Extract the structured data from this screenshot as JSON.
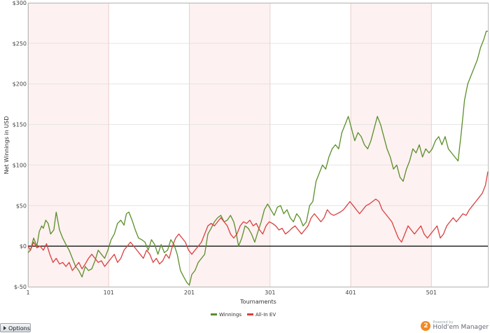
{
  "chart_data": {
    "type": "line",
    "title": "",
    "xlabel": "Tournaments",
    "ylabel": "Net Winnings in USD",
    "xlim": [
      1,
      571
    ],
    "ylim": [
      -50,
      300
    ],
    "x_ticks": [
      1,
      101,
      201,
      301,
      401,
      501
    ],
    "x_tick_labels": [
      "1",
      "101",
      "201",
      "301",
      "401",
      "501"
    ],
    "y_ticks": [
      -50,
      0,
      50,
      100,
      150,
      200,
      250,
      300
    ],
    "y_tick_labels": [
      "$-50",
      "$0",
      "$50",
      "$100",
      "$150",
      "$200",
      "$250",
      "$300"
    ],
    "shaded_bands": [
      [
        1,
        101
      ],
      [
        201,
        301
      ],
      [
        401,
        501
      ]
    ],
    "grid": true,
    "legend_position": "bottom-center",
    "series": [
      {
        "name": "Winnings",
        "color": "#5a8f29",
        "points": [
          [
            1,
            -8
          ],
          [
            4,
            -5
          ],
          [
            8,
            10
          ],
          [
            12,
            0
          ],
          [
            15,
            18
          ],
          [
            18,
            25
          ],
          [
            20,
            22
          ],
          [
            23,
            32
          ],
          [
            26,
            28
          ],
          [
            29,
            15
          ],
          [
            33,
            20
          ],
          [
            36,
            42
          ],
          [
            40,
            20
          ],
          [
            44,
            10
          ],
          [
            48,
            2
          ],
          [
            52,
            -5
          ],
          [
            56,
            -15
          ],
          [
            60,
            -25
          ],
          [
            64,
            -30
          ],
          [
            68,
            -38
          ],
          [
            72,
            -25
          ],
          [
            76,
            -30
          ],
          [
            80,
            -28
          ],
          [
            84,
            -18
          ],
          [
            88,
            -5
          ],
          [
            92,
            -10
          ],
          [
            96,
            -15
          ],
          [
            100,
            -5
          ],
          [
            104,
            8
          ],
          [
            108,
            15
          ],
          [
            112,
            28
          ],
          [
            116,
            32
          ],
          [
            120,
            26
          ],
          [
            123,
            40
          ],
          [
            126,
            42
          ],
          [
            130,
            32
          ],
          [
            134,
            20
          ],
          [
            138,
            10
          ],
          [
            142,
            8
          ],
          [
            146,
            5
          ],
          [
            150,
            -5
          ],
          [
            154,
            8
          ],
          [
            158,
            2
          ],
          [
            162,
            -10
          ],
          [
            166,
            2
          ],
          [
            170,
            -8
          ],
          [
            174,
            -5
          ],
          [
            178,
            8
          ],
          [
            182,
            2
          ],
          [
            186,
            -10
          ],
          [
            190,
            -30
          ],
          [
            194,
            -38
          ],
          [
            198,
            -45
          ],
          [
            201,
            -48
          ],
          [
            204,
            -35
          ],
          [
            208,
            -30
          ],
          [
            212,
            -20
          ],
          [
            216,
            -15
          ],
          [
            220,
            -10
          ],
          [
            224,
            15
          ],
          [
            228,
            22
          ],
          [
            232,
            30
          ],
          [
            236,
            35
          ],
          [
            240,
            38
          ],
          [
            244,
            30
          ],
          [
            248,
            32
          ],
          [
            252,
            38
          ],
          [
            256,
            30
          ],
          [
            258,
            22
          ],
          [
            262,
            0
          ],
          [
            266,
            10
          ],
          [
            270,
            25
          ],
          [
            274,
            22
          ],
          [
            278,
            15
          ],
          [
            282,
            5
          ],
          [
            286,
            18
          ],
          [
            290,
            30
          ],
          [
            294,
            45
          ],
          [
            298,
            52
          ],
          [
            302,
            45
          ],
          [
            306,
            38
          ],
          [
            310,
            48
          ],
          [
            314,
            50
          ],
          [
            318,
            40
          ],
          [
            322,
            45
          ],
          [
            326,
            35
          ],
          [
            330,
            30
          ],
          [
            334,
            40
          ],
          [
            338,
            35
          ],
          [
            342,
            25
          ],
          [
            346,
            30
          ],
          [
            350,
            50
          ],
          [
            354,
            55
          ],
          [
            358,
            80
          ],
          [
            362,
            90
          ],
          [
            366,
            100
          ],
          [
            370,
            95
          ],
          [
            374,
            110
          ],
          [
            378,
            120
          ],
          [
            382,
            125
          ],
          [
            386,
            120
          ],
          [
            390,
            140
          ],
          [
            394,
            150
          ],
          [
            398,
            160
          ],
          [
            402,
            145
          ],
          [
            406,
            130
          ],
          [
            410,
            140
          ],
          [
            414,
            135
          ],
          [
            418,
            125
          ],
          [
            422,
            120
          ],
          [
            426,
            130
          ],
          [
            430,
            145
          ],
          [
            434,
            160
          ],
          [
            438,
            150
          ],
          [
            442,
            135
          ],
          [
            446,
            120
          ],
          [
            450,
            110
          ],
          [
            454,
            95
          ],
          [
            458,
            100
          ],
          [
            462,
            85
          ],
          [
            466,
            80
          ],
          [
            470,
            95
          ],
          [
            474,
            105
          ],
          [
            478,
            120
          ],
          [
            482,
            115
          ],
          [
            486,
            125
          ],
          [
            490,
            110
          ],
          [
            494,
            120
          ],
          [
            498,
            115
          ],
          [
            502,
            120
          ],
          [
            506,
            130
          ],
          [
            510,
            135
          ],
          [
            514,
            125
          ],
          [
            518,
            135
          ],
          [
            522,
            120
          ],
          [
            526,
            115
          ],
          [
            530,
            110
          ],
          [
            534,
            105
          ],
          [
            538,
            140
          ],
          [
            542,
            180
          ],
          [
            546,
            200
          ],
          [
            550,
            210
          ],
          [
            554,
            220
          ],
          [
            558,
            230
          ],
          [
            562,
            245
          ],
          [
            566,
            255
          ],
          [
            569,
            265
          ],
          [
            571,
            265
          ]
        ]
      },
      {
        "name": "All-In EV",
        "color": "#d94040",
        "points": [
          [
            1,
            0
          ],
          [
            4,
            -5
          ],
          [
            8,
            5
          ],
          [
            12,
            -2
          ],
          [
            16,
            0
          ],
          [
            20,
            -5
          ],
          [
            24,
            3
          ],
          [
            28,
            -10
          ],
          [
            32,
            -20
          ],
          [
            36,
            -15
          ],
          [
            40,
            -22
          ],
          [
            44,
            -20
          ],
          [
            48,
            -25
          ],
          [
            52,
            -20
          ],
          [
            56,
            -30
          ],
          [
            60,
            -25
          ],
          [
            64,
            -20
          ],
          [
            68,
            -28
          ],
          [
            72,
            -22
          ],
          [
            76,
            -15
          ],
          [
            80,
            -10
          ],
          [
            84,
            -15
          ],
          [
            88,
            -20
          ],
          [
            92,
            -18
          ],
          [
            96,
            -25
          ],
          [
            100,
            -20
          ],
          [
            104,
            -15
          ],
          [
            108,
            -10
          ],
          [
            112,
            -20
          ],
          [
            116,
            -15
          ],
          [
            120,
            -5
          ],
          [
            124,
            0
          ],
          [
            128,
            5
          ],
          [
            132,
            0
          ],
          [
            136,
            -5
          ],
          [
            140,
            -10
          ],
          [
            144,
            -15
          ],
          [
            148,
            -5
          ],
          [
            152,
            -10
          ],
          [
            156,
            -20
          ],
          [
            160,
            -15
          ],
          [
            164,
            -22
          ],
          [
            168,
            -18
          ],
          [
            172,
            -10
          ],
          [
            176,
            -15
          ],
          [
            180,
            0
          ],
          [
            184,
            10
          ],
          [
            188,
            15
          ],
          [
            192,
            10
          ],
          [
            196,
            5
          ],
          [
            200,
            -5
          ],
          [
            204,
            -10
          ],
          [
            208,
            -5
          ],
          [
            212,
            0
          ],
          [
            216,
            5
          ],
          [
            220,
            15
          ],
          [
            224,
            25
          ],
          [
            228,
            28
          ],
          [
            232,
            25
          ],
          [
            236,
            30
          ],
          [
            240,
            35
          ],
          [
            244,
            30
          ],
          [
            248,
            25
          ],
          [
            252,
            15
          ],
          [
            256,
            10
          ],
          [
            260,
            15
          ],
          [
            264,
            25
          ],
          [
            268,
            30
          ],
          [
            272,
            28
          ],
          [
            276,
            32
          ],
          [
            280,
            25
          ],
          [
            284,
            28
          ],
          [
            288,
            20
          ],
          [
            292,
            15
          ],
          [
            296,
            25
          ],
          [
            300,
            30
          ],
          [
            304,
            28
          ],
          [
            308,
            25
          ],
          [
            312,
            20
          ],
          [
            316,
            22
          ],
          [
            320,
            15
          ],
          [
            324,
            18
          ],
          [
            328,
            22
          ],
          [
            332,
            25
          ],
          [
            336,
            20
          ],
          [
            340,
            15
          ],
          [
            344,
            20
          ],
          [
            348,
            25
          ],
          [
            352,
            35
          ],
          [
            356,
            40
          ],
          [
            360,
            35
          ],
          [
            364,
            30
          ],
          [
            368,
            35
          ],
          [
            372,
            45
          ],
          [
            376,
            40
          ],
          [
            380,
            38
          ],
          [
            384,
            40
          ],
          [
            388,
            42
          ],
          [
            392,
            45
          ],
          [
            396,
            50
          ],
          [
            400,
            55
          ],
          [
            404,
            50
          ],
          [
            408,
            45
          ],
          [
            412,
            40
          ],
          [
            416,
            45
          ],
          [
            420,
            50
          ],
          [
            424,
            52
          ],
          [
            428,
            55
          ],
          [
            432,
            58
          ],
          [
            436,
            55
          ],
          [
            440,
            45
          ],
          [
            444,
            40
          ],
          [
            448,
            35
          ],
          [
            452,
            30
          ],
          [
            456,
            20
          ],
          [
            460,
            10
          ],
          [
            464,
            5
          ],
          [
            468,
            15
          ],
          [
            472,
            25
          ],
          [
            476,
            20
          ],
          [
            480,
            15
          ],
          [
            484,
            20
          ],
          [
            488,
            25
          ],
          [
            492,
            15
          ],
          [
            496,
            10
          ],
          [
            500,
            15
          ],
          [
            504,
            20
          ],
          [
            508,
            25
          ],
          [
            512,
            10
          ],
          [
            516,
            15
          ],
          [
            520,
            25
          ],
          [
            524,
            30
          ],
          [
            528,
            35
          ],
          [
            532,
            30
          ],
          [
            536,
            35
          ],
          [
            540,
            40
          ],
          [
            544,
            38
          ],
          [
            548,
            45
          ],
          [
            552,
            50
          ],
          [
            556,
            55
          ],
          [
            560,
            60
          ],
          [
            564,
            65
          ],
          [
            568,
            75
          ],
          [
            571,
            92
          ]
        ]
      }
    ]
  },
  "ui": {
    "options_label": "Options",
    "brand_powered": "Powered by",
    "brand_name": "Hold'em Manager",
    "brand_logo_glyph": "2"
  }
}
